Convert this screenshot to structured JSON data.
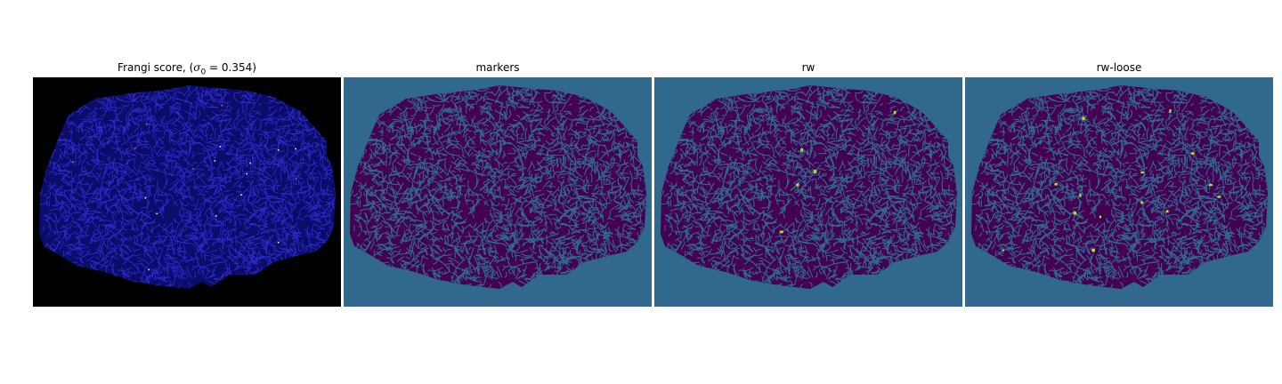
{
  "panels": [
    {
      "title_prefix": "Frangi score, (",
      "title_symbol": "σ",
      "title_sub": "0",
      "title_suffix": " = 0.354)"
    },
    {
      "title": "markers"
    },
    {
      "title": "rw"
    },
    {
      "title": "rw-loose"
    }
  ],
  "colors": {
    "frangi_bg": "#000000",
    "frangi_fill": "#0c0c6a",
    "frangi_vessel": "#2a2ac8",
    "frangi_bright": "#ffffff",
    "label_bg": "#31688e",
    "label_blob": "#440154",
    "label_vessel": "#31688e",
    "label_highlight": "#b5de2b"
  }
}
